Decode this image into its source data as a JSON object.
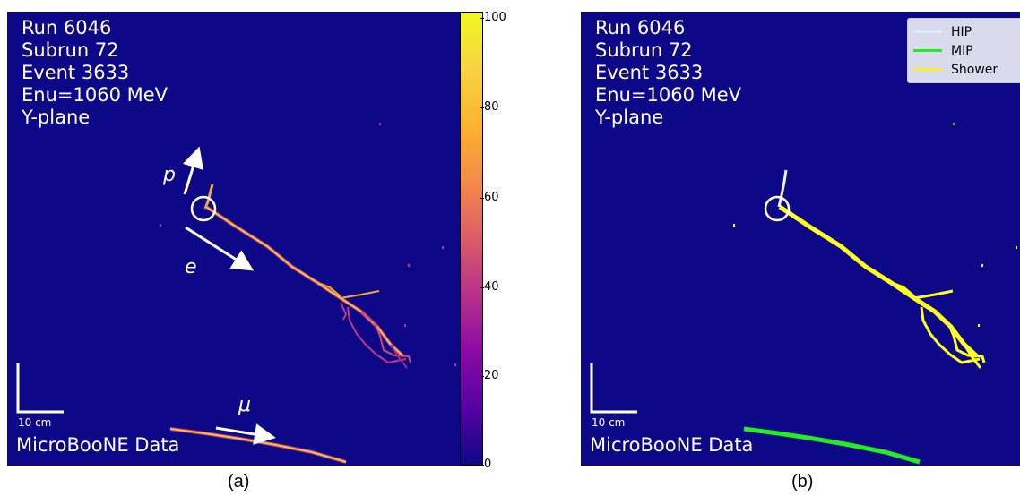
{
  "panels": [
    {
      "info": [
        "Run 6046",
        "Subrun 72",
        "Event 3633",
        "Enu=1060 MeV",
        "Y-plane"
      ],
      "scale_label": "10 cm",
      "data_label": "MicroBooNE Data",
      "caption": "(a)",
      "particle_labels": {
        "proton": "p",
        "electron": "e",
        "muon": "μ"
      }
    },
    {
      "info": [
        "Run 6046",
        "Subrun 72",
        "Event 3633",
        "Enu=1060 MeV",
        "Y-plane"
      ],
      "scale_label": "10 cm",
      "data_label": "MicroBooNE Data",
      "caption": "(b)",
      "legend": [
        {
          "label": "HIP",
          "color": "#d8ecff"
        },
        {
          "label": "MIP",
          "color": "#22ee22"
        },
        {
          "label": "Shower",
          "color": "#ffee22"
        }
      ]
    }
  ],
  "colorbar": {
    "ticks": [
      "100",
      "80",
      "60",
      "40",
      "20",
      "0"
    ],
    "range": [
      0,
      100
    ],
    "colormap": "plasma"
  },
  "colors": {
    "background": "#0d0887",
    "track_core": "#f5c33a",
    "track_edge": "#c03a83",
    "shower": "#ffff22",
    "mip": "#22ee22"
  }
}
